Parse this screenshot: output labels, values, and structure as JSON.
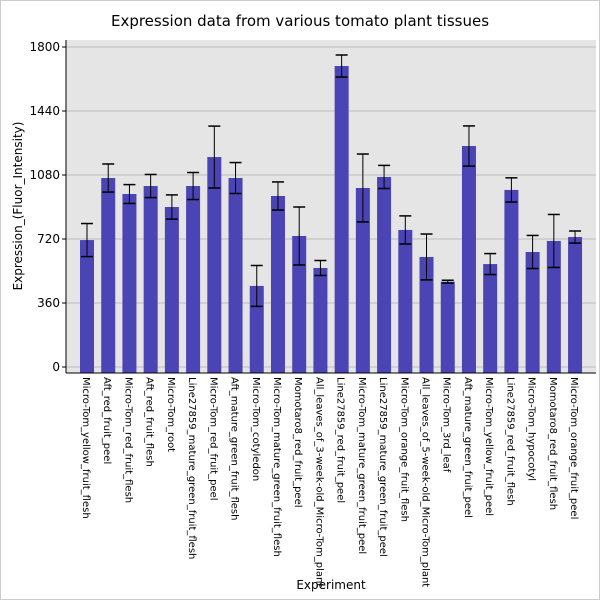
{
  "chart_data": {
    "type": "bar",
    "title": "Expression data from various tomato plant tissues",
    "xlabel": "Experiment",
    "ylabel": "Expression_(Fluor_Intensity)",
    "ylim": [
      -20,
      1845
    ],
    "yticks": [
      0,
      360,
      720,
      1080,
      1440,
      1800
    ],
    "grid": true,
    "bar_color": "#4b44b4",
    "background": "#e5e5e5",
    "categories": [
      "Micro-Tom_yellow_fruit_flesh",
      "Aft_red_fruit_peel",
      "Micro-Tom_red_fruit_flesh",
      "Aft_red_fruit_flesh",
      "Micro-Tom_root",
      "Line27859_mature_green_fruit_flesh",
      "Micro-Tom_red_fruit_peel",
      "Aft_mature_green_fruit_flesh",
      "Micro-Tom_cotyledon",
      "Micro-Tom_mature_green_fruit_flesh",
      "Momotaro8_red_fruit_peel",
      "All_leaves_of_3-week-old_Micro-Tom_plant",
      "Line27859_red_fruit_peel",
      "Micro-Tom_mature_green_fruit_peel",
      "Line27859_mature_green_fruit_peel",
      "Micro-Tom_orange_fruit_flesh",
      "All_leaves_of_5-week-old_Micro-Tom_plant",
      "Micro-Tom_3rd_leaf",
      "Aft_mature_green_fruit_peel",
      "Micro-Tom_yellow_fruit_peel",
      "Line27859_red_fruit_flesh",
      "Micro-Tom_hypocotyl",
      "Momotaro8_red_fruit_flesh",
      "Micro-Tom_orange_fruit_peel"
    ],
    "values": [
      714,
      1063,
      973,
      1018,
      900,
      1018,
      1181,
      1063,
      456,
      962,
      737,
      557,
      1693,
      1007,
      1069,
      771,
      619,
      480,
      1243,
      579,
      996,
      647,
      709,
      731
    ],
    "errors": [
      93,
      79,
      53,
      65,
      68,
      76,
      174,
      87,
      115,
      79,
      163,
      42,
      62,
      191,
      65,
      79,
      129,
      8,
      113,
      59,
      68,
      93,
      149,
      34
    ]
  }
}
